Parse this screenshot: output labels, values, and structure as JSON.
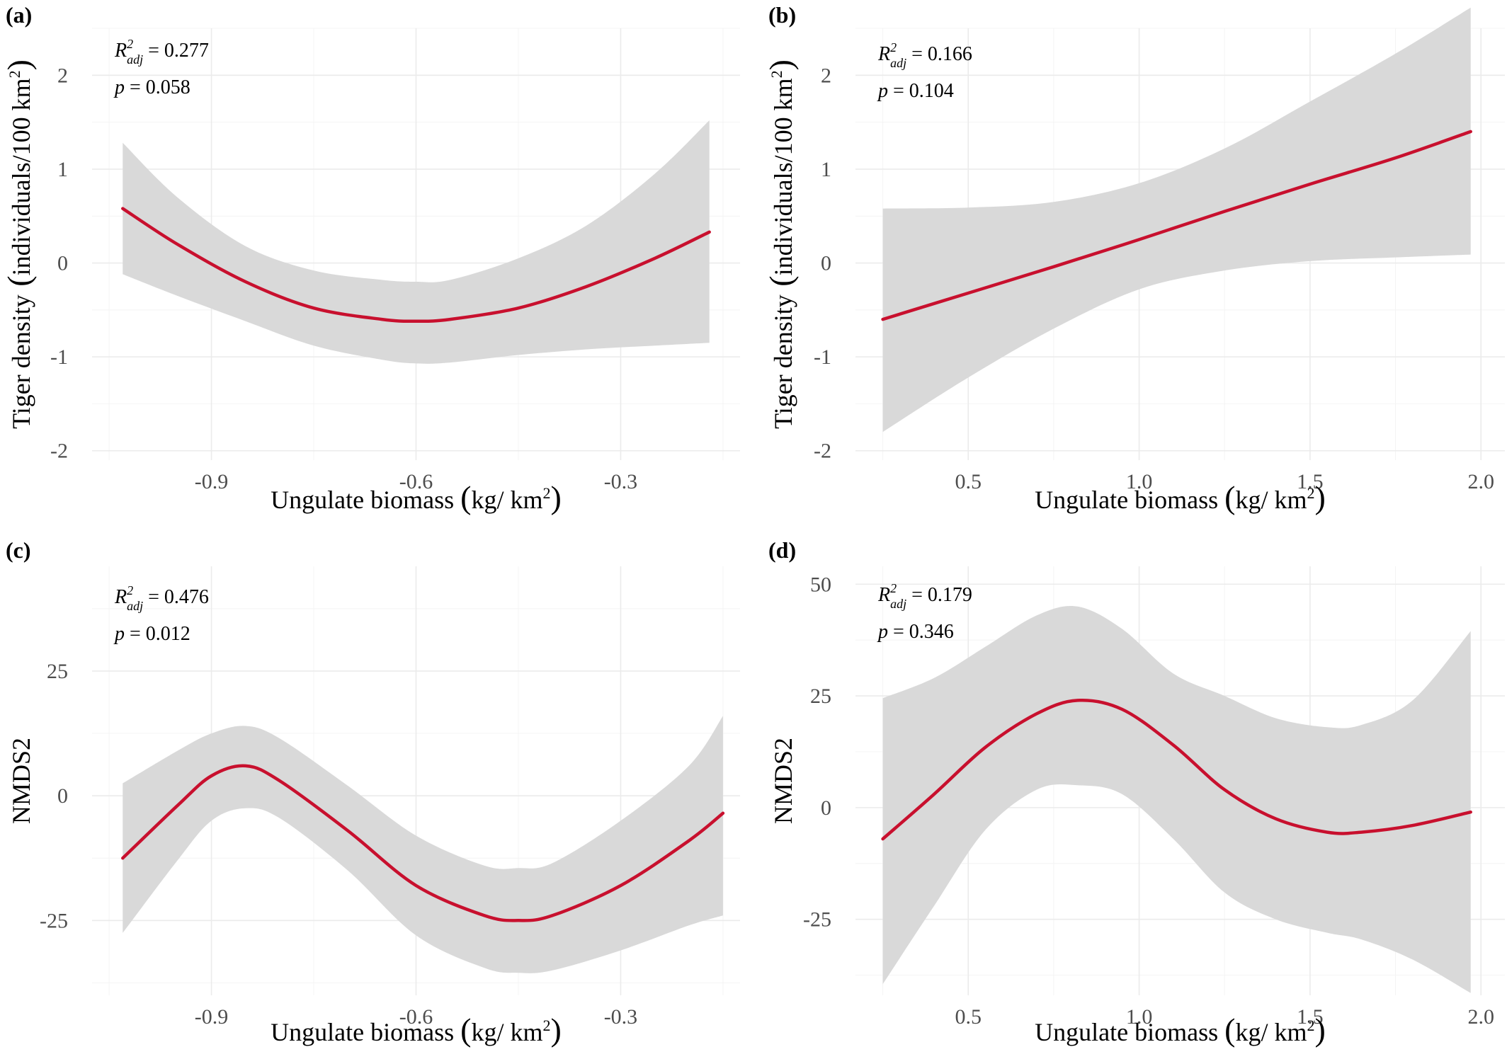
{
  "chart_data": [
    {
      "type": "line",
      "panel_label": "(a)",
      "xlabel": "Ungulate biomass",
      "xlabel_units": "kg/ km",
      "xlabel_exp": "2",
      "ylabel": "Tiger density",
      "ylabel_units": "individuals/100 km",
      "ylabel_exp": "2",
      "xlim": [
        -1.075,
        -0.125
      ],
      "ylim": [
        -2.1,
        2.5
      ],
      "x_ticks": [
        -0.9,
        -0.6,
        -0.3
      ],
      "x_tick_labels": [
        "-0.9",
        "-0.6",
        "-0.3"
      ],
      "y_ticks": [
        -2,
        -1,
        0,
        1,
        2
      ],
      "y_tick_labels": [
        "-2",
        "-1",
        "0",
        "1",
        "2"
      ],
      "stats": {
        "r2_label": "R",
        "r2_sup": "2",
        "r2_sub": "adj",
        "r2_value": " = 0.277",
        "p_label": "p",
        "p_value": " = 0.058"
      },
      "series": [
        {
          "x": [
            -1.03,
            -0.95,
            -0.85,
            -0.75,
            -0.65,
            -0.6,
            -0.55,
            -0.45,
            -0.35,
            -0.25,
            -0.17
          ],
          "y": [
            0.58,
            0.2,
            -0.2,
            -0.48,
            -0.6,
            -0.62,
            -0.6,
            -0.48,
            -0.25,
            0.05,
            0.33
          ],
          "lower": [
            -0.12,
            -0.35,
            -0.62,
            -0.88,
            -1.03,
            -1.07,
            -1.06,
            -0.98,
            -0.92,
            -0.88,
            -0.85
          ],
          "upper": [
            1.28,
            0.7,
            0.18,
            -0.08,
            -0.18,
            -0.2,
            -0.18,
            0.05,
            0.4,
            0.95,
            1.52
          ]
        }
      ],
      "grid": true
    },
    {
      "type": "line",
      "panel_label": "(b)",
      "xlabel": "Ungulate biomass",
      "xlabel_units": "kg/ km",
      "xlabel_exp": "2",
      "ylabel": "Tiger density",
      "ylabel_units": "individuals/100 km",
      "ylabel_exp": "2",
      "xlim": [
        0.17,
        2.07
      ],
      "ylim": [
        -2.1,
        2.5
      ],
      "x_ticks": [
        0.5,
        1.0,
        1.5,
        2.0
      ],
      "x_tick_labels": [
        "0.5",
        "1.0",
        "1.5",
        "2.0"
      ],
      "y_ticks": [
        -2,
        -1,
        0,
        1,
        2
      ],
      "y_tick_labels": [
        "-2",
        "-1",
        "0",
        "1",
        "2"
      ],
      "stats": {
        "r2_label": "R",
        "r2_sup": "2",
        "r2_sub": "adj",
        "r2_value": " = 0.166",
        "p_label": "p",
        "p_value": " = 0.104"
      },
      "series": [
        {
          "x": [
            0.25,
            0.5,
            0.75,
            1.0,
            1.25,
            1.5,
            1.75,
            1.97
          ],
          "y": [
            -0.6,
            -0.32,
            -0.04,
            0.25,
            0.55,
            0.84,
            1.12,
            1.4
          ],
          "lower": [
            -1.8,
            -1.22,
            -0.7,
            -0.28,
            -0.08,
            0.02,
            0.06,
            0.09
          ],
          "upper": [
            0.58,
            0.59,
            0.65,
            0.85,
            1.22,
            1.72,
            2.23,
            2.72
          ]
        }
      ],
      "grid": true
    },
    {
      "type": "line",
      "panel_label": "(c)",
      "xlabel": "Ungulate biomass",
      "xlabel_units": "kg/ km",
      "xlabel_exp": "2",
      "ylabel": "NMDS2",
      "xlim": [
        -1.075,
        -0.125
      ],
      "ylim": [
        -40,
        46
      ],
      "x_ticks": [
        -0.9,
        -0.6,
        -0.3
      ],
      "x_tick_labels": [
        "-0.9",
        "-0.6",
        "-0.3"
      ],
      "y_ticks": [
        -25,
        0,
        25
      ],
      "y_tick_labels": [
        "-25",
        "0",
        "25"
      ],
      "stats": {
        "r2_label": "R",
        "r2_sup": "2",
        "r2_sub": "adj",
        "r2_value": " = 0.476",
        "p_label": "p",
        "p_value": " = 0.012"
      },
      "series": [
        {
          "x": [
            -1.03,
            -0.95,
            -0.9,
            -0.85,
            -0.8,
            -0.7,
            -0.6,
            -0.5,
            -0.45,
            -0.4,
            -0.3,
            -0.2,
            -0.15
          ],
          "y": [
            -12.5,
            -2,
            4,
            6,
            3,
            -7,
            -18,
            -24,
            -25,
            -24,
            -18,
            -9,
            -3.5
          ],
          "lower": [
            -27.5,
            -13,
            -5,
            -2.5,
            -4.5,
            -15,
            -28,
            -34.5,
            -35.5,
            -35,
            -31,
            -26,
            -24
          ],
          "upper": [
            2.5,
            9,
            12.5,
            14,
            11.5,
            2,
            -8,
            -14,
            -14.5,
            -13.5,
            -5,
            6,
            16
          ]
        }
      ],
      "grid": true
    },
    {
      "type": "line",
      "panel_label": "(d)",
      "xlabel": "Ungulate biomass",
      "xlabel_units": "kg/ km",
      "xlabel_exp": "2",
      "ylabel": "NMDS2",
      "xlim": [
        0.17,
        2.07
      ],
      "ylim": [
        -42,
        54
      ],
      "x_ticks": [
        0.5,
        1.0,
        1.5,
        2.0
      ],
      "x_tick_labels": [
        "0.5",
        "1.0",
        "1.5",
        "2.0"
      ],
      "y_ticks": [
        -25,
        0,
        25,
        50
      ],
      "y_tick_labels": [
        "-25",
        "0",
        "25",
        "50"
      ],
      "stats": {
        "r2_label": "R",
        "r2_sup": "2",
        "r2_sub": "adj",
        "r2_value": " = 0.179",
        "p_label": "p",
        "p_value": " = 0.346"
      },
      "series": [
        {
          "x": [
            0.25,
            0.4,
            0.55,
            0.7,
            0.82,
            0.95,
            1.1,
            1.25,
            1.4,
            1.55,
            1.65,
            1.8,
            1.97
          ],
          "y": [
            -7,
            3,
            13.5,
            21,
            24,
            22,
            14,
            4,
            -2.5,
            -5.5,
            -5.5,
            -4,
            -1
          ],
          "lower": [
            -39.5,
            -22,
            -5,
            4,
            5,
            3,
            -7,
            -19,
            -25,
            -28,
            -29.5,
            -34,
            -41.5
          ],
          "upper": [
            24.5,
            29,
            36,
            43,
            45,
            40,
            30,
            25,
            20,
            18,
            18.5,
            24,
            39.5
          ]
        }
      ],
      "grid": true
    }
  ]
}
